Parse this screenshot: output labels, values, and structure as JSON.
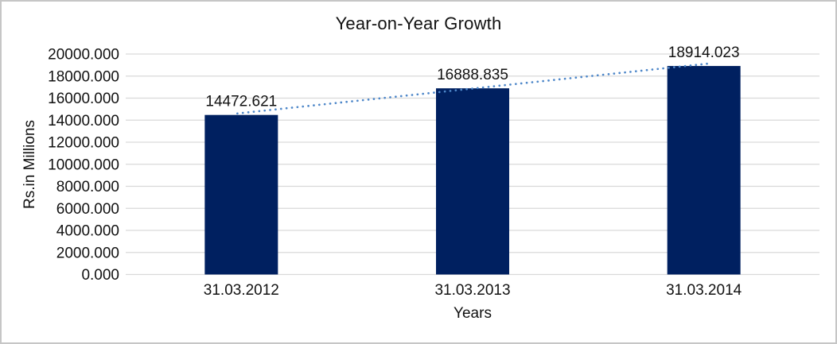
{
  "chart_data": {
    "type": "bar",
    "title": "Year-on-Year Growth",
    "xlabel": "Years",
    "ylabel": "Rs.in Millions",
    "categories": [
      "31.03.2012",
      "31.03.2013",
      "31.03.2014"
    ],
    "values": [
      14472.621,
      16888.835,
      18914.023
    ],
    "data_labels": [
      "14472.621",
      "16888.835",
      "18914.023"
    ],
    "ylim": [
      0,
      20000
    ],
    "ytick_step": 2000,
    "ytick_decimals": 3,
    "grid": "horizontal",
    "legend_position": "none",
    "bar_color": "#002060",
    "gridline_color": "#d9d9d9",
    "text_color": "#111111",
    "trendline": {
      "type": "linear",
      "style": "dotted",
      "color": "#4e87c9"
    }
  }
}
